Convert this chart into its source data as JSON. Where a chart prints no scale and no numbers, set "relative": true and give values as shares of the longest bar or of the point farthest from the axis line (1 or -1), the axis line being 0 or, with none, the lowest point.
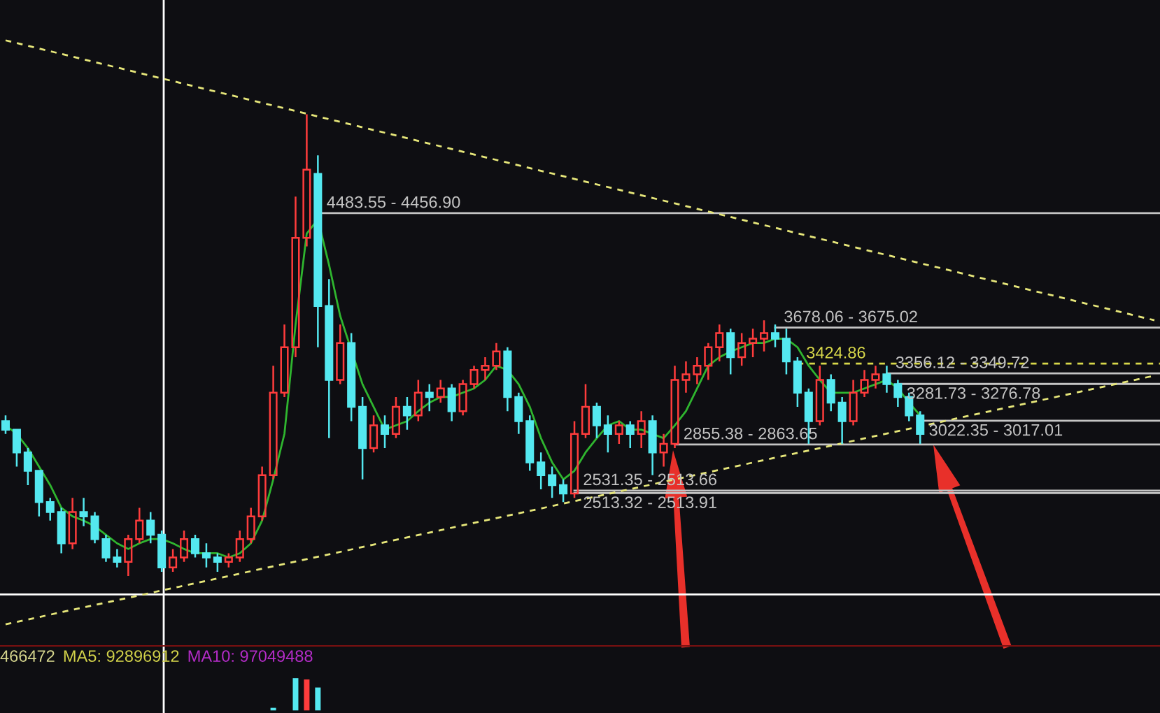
{
  "chart_data": [
    {
      "type": "candlestick",
      "tick_labels": false,
      "ylim": [
        1438,
        5984
      ],
      "categories": [
        null,
        null,
        null,
        null,
        null,
        null,
        null,
        null,
        null,
        null,
        null,
        null,
        null,
        null,
        null,
        null,
        null,
        null,
        null,
        null,
        null,
        null,
        null,
        null,
        null,
        null,
        null,
        null,
        null,
        null,
        null,
        null,
        null,
        null,
        null,
        null,
        null,
        null,
        null,
        null,
        null,
        null,
        null,
        null,
        null,
        null,
        null,
        null,
        null,
        null,
        null,
        null,
        null,
        null,
        null,
        null,
        null,
        null,
        null,
        null,
        null,
        null,
        null,
        null,
        null,
        null,
        null,
        null,
        null,
        null,
        null,
        null,
        null,
        null,
        null,
        null,
        null,
        null,
        null,
        null,
        null,
        null,
        null,
        null,
        null,
        null,
        null,
        null,
        null,
        null,
        null,
        null,
        null,
        null,
        null,
        null,
        null,
        null,
        null,
        null,
        null,
        null,
        null,
        null
      ],
      "ohlc": [
        [
          3020,
          3060,
          2930,
          2960
        ],
        [
          2960,
          2960,
          2700,
          2800
        ],
        [
          2800,
          2830,
          2570,
          2670
        ],
        [
          2670,
          2670,
          2350,
          2450
        ],
        [
          2450,
          2480,
          2320,
          2380
        ],
        [
          2380,
          2410,
          2090,
          2160
        ],
        [
          2160,
          2480,
          2120,
          2380
        ],
        [
          2380,
          2480,
          2280,
          2350
        ],
        [
          2350,
          2380,
          2160,
          2190
        ],
        [
          2190,
          2220,
          2030,
          2060
        ],
        [
          2060,
          2120,
          1990,
          2030
        ],
        [
          2030,
          2220,
          1930,
          2190
        ],
        [
          2190,
          2410,
          2160,
          2320
        ],
        [
          2320,
          2380,
          2160,
          2220
        ],
        [
          2220,
          2250,
          1960,
          1990
        ],
        [
          1990,
          2120,
          1960,
          2060
        ],
        [
          2060,
          2250,
          2030,
          2190
        ],
        [
          2190,
          2220,
          2060,
          2090
        ],
        [
          2090,
          2160,
          1990,
          2060
        ],
        [
          2060,
          2090,
          1960,
          2030
        ],
        [
          2030,
          2090,
          1990,
          2060
        ],
        [
          2060,
          2250,
          2030,
          2190
        ],
        [
          2190,
          2410,
          2160,
          2350
        ],
        [
          2350,
          2700,
          2320,
          2640
        ],
        [
          2640,
          3410,
          2610,
          3220
        ],
        [
          3220,
          3700,
          3190,
          3540
        ],
        [
          3540,
          4600,
          3470,
          4310
        ],
        [
          4310,
          5180,
          4250,
          4790
        ],
        [
          4760,
          4890,
          3540,
          3830
        ],
        [
          3830,
          4020,
          2900,
          3310
        ],
        [
          3310,
          3700,
          3280,
          3570
        ],
        [
          3570,
          3640,
          3020,
          3120
        ],
        [
          3120,
          3190,
          2610,
          2830
        ],
        [
          2830,
          3060,
          2800,
          2990
        ],
        [
          2990,
          3060,
          2830,
          2930
        ],
        [
          2930,
          3190,
          2900,
          3120
        ],
        [
          3120,
          3190,
          2960,
          3060
        ],
        [
          3060,
          3310,
          3020,
          3220
        ],
        [
          3220,
          3280,
          3090,
          3190
        ],
        [
          3190,
          3310,
          3150,
          3250
        ],
        [
          3250,
          3280,
          3020,
          3090
        ],
        [
          3090,
          3310,
          3060,
          3280
        ],
        [
          3280,
          3410,
          3250,
          3380
        ],
        [
          3380,
          3470,
          3310,
          3410
        ],
        [
          3410,
          3570,
          3380,
          3510
        ],
        [
          3510,
          3540,
          3090,
          3190
        ],
        [
          3190,
          3220,
          2930,
          3020
        ],
        [
          3020,
          3060,
          2670,
          2730
        ],
        [
          2730,
          2800,
          2540,
          2640
        ],
        [
          2640,
          2700,
          2480,
          2570
        ],
        [
          2570,
          2610,
          2450,
          2510
        ],
        [
          2510,
          3020,
          2480,
          2930
        ],
        [
          2930,
          3280,
          2900,
          3120
        ],
        [
          3120,
          3150,
          2900,
          2990
        ],
        [
          2990,
          3060,
          2800,
          2930
        ],
        [
          2930,
          3020,
          2860,
          2990
        ],
        [
          2990,
          3020,
          2830,
          2930
        ],
        [
          2930,
          3090,
          2830,
          3020
        ],
        [
          3020,
          3060,
          2640,
          2800
        ],
        [
          2800,
          2930,
          2700,
          2860
        ],
        [
          2860,
          3410,
          2830,
          3310
        ],
        [
          3310,
          3440,
          3220,
          3350
        ],
        [
          3350,
          3470,
          3280,
          3410
        ],
        [
          3410,
          3570,
          3310,
          3540
        ],
        [
          3540,
          3700,
          3440,
          3640
        ],
        [
          3640,
          3670,
          3350,
          3470
        ],
        [
          3470,
          3640,
          3410,
          3570
        ],
        [
          3570,
          3670,
          3470,
          3600
        ],
        [
          3600,
          3730,
          3510,
          3640
        ],
        [
          3640,
          3700,
          3540,
          3600
        ],
        [
          3600,
          3670,
          3350,
          3440
        ],
        [
          3440,
          3470,
          3120,
          3220
        ],
        [
          3220,
          3250,
          2860,
          3020
        ],
        [
          3020,
          3410,
          2990,
          3310
        ],
        [
          3310,
          3350,
          3090,
          3150
        ],
        [
          3150,
          3190,
          2860,
          3020
        ],
        [
          3020,
          3310,
          2990,
          3220
        ],
        [
          3220,
          3380,
          3190,
          3310
        ],
        [
          3310,
          3410,
          3250,
          3350
        ],
        [
          3350,
          3410,
          3220,
          3280
        ],
        [
          3280,
          3310,
          3120,
          3190
        ],
        [
          3190,
          3220,
          3020,
          3060
        ],
        [
          3060,
          3090,
          2860,
          2930
        ],
        null,
        null,
        null,
        null,
        null,
        null,
        null,
        null,
        null,
        null,
        null,
        null,
        null,
        null,
        null,
        null,
        null,
        null,
        null,
        null,
        null
      ],
      "series": [
        {
          "type": "line",
          "color": "#2fb52f",
          "line_style": "solid",
          "values": [
            2990,
            2930,
            2830,
            2700,
            2570,
            2410,
            2350,
            2320,
            2280,
            2220,
            2160,
            2120,
            2160,
            2190,
            2190,
            2160,
            2120,
            2090,
            2090,
            2090,
            2060,
            2090,
            2160,
            2320,
            2610,
            2930,
            3700,
            4340,
            4440,
            4120,
            3760,
            null,
            3280,
            3120,
            2960,
            2990,
            3020,
            3090,
            3150,
            3190,
            3190,
            3220,
            3250,
            3310,
            3410,
            3380,
            3280,
            3120,
            2900,
            2730,
            2610,
            2670,
            2800,
            2900,
            2990,
            3020,
            2960,
            2960,
            2930,
            2900,
            2990,
            3090,
            3250,
            3410,
            3470,
            3510,
            3540,
            3570,
            3570,
            3600,
            3600,
            3540,
            3410,
            3310,
            3220,
            3220,
            3220,
            3250,
            3280,
            3310,
            3250,
            3150,
            3060,
            null,
            null,
            null,
            null,
            null,
            null,
            null,
            null,
            null,
            null,
            null,
            null,
            null,
            null,
            null,
            null,
            null,
            null,
            null,
            null,
            null
          ]
        },
        {
          "type": "line",
          "color": "#e6e67a",
          "line_style": "dashed",
          "values": [
            5700,
            null,
            null,
            null,
            null,
            null,
            null,
            null,
            null,
            null,
            null,
            null,
            null,
            null,
            null,
            null,
            null,
            null,
            null,
            null,
            null,
            null,
            null,
            null,
            null,
            null,
            null,
            null,
            null,
            null,
            null,
            null,
            null,
            null,
            null,
            null,
            null,
            null,
            null,
            null,
            null,
            null,
            null,
            null,
            null,
            null,
            null,
            null,
            null,
            null,
            null,
            null,
            null,
            null,
            null,
            null,
            null,
            null,
            null,
            null,
            null,
            null,
            null,
            null,
            null,
            null,
            null,
            null,
            null,
            null,
            null,
            null,
            null,
            null,
            null,
            null,
            null,
            null,
            null,
            null,
            null,
            null,
            null,
            null,
            null,
            null,
            null,
            null,
            null,
            null,
            null,
            null,
            null,
            null,
            null,
            null,
            null,
            null,
            null,
            null,
            null,
            null,
            null,
            3730
          ]
        },
        {
          "type": "line",
          "color": "#e6e67a",
          "line_style": "dashed",
          "values": [
            1590,
            null,
            null,
            null,
            null,
            null,
            null,
            null,
            null,
            null,
            null,
            null,
            null,
            null,
            null,
            null,
            null,
            null,
            null,
            null,
            null,
            null,
            null,
            null,
            null,
            null,
            null,
            null,
            null,
            null,
            null,
            null,
            null,
            null,
            null,
            null,
            null,
            null,
            null,
            null,
            null,
            null,
            null,
            null,
            null,
            null,
            null,
            null,
            null,
            null,
            null,
            null,
            null,
            null,
            null,
            null,
            null,
            null,
            null,
            null,
            null,
            null,
            null,
            null,
            null,
            null,
            null,
            null,
            null,
            null,
            null,
            null,
            null,
            null,
            null,
            null,
            null,
            null,
            null,
            null,
            null,
            null,
            null,
            null,
            null,
            null,
            null,
            null,
            null,
            null,
            null,
            null,
            null,
            null,
            null,
            null,
            null,
            null,
            null,
            null,
            null,
            null,
            null,
            3340
          ]
        }
      ],
      "ref_lines": [
        {
          "axis": "y",
          "value": 4483.55,
          "label": "4483.55 - 4456.90",
          "color": "#c4c4c4"
        },
        {
          "axis": "y",
          "value": 3678.06,
          "label": "3678.06 - 3675.02",
          "color": "#c4c4c4"
        },
        {
          "axis": "y",
          "value": 3424.86,
          "label": "3424.86",
          "color": "#d8d84a",
          "line_style": "dashed"
        },
        {
          "axis": "y",
          "value": 3356.12,
          "label": "3356.12 - 3349.72",
          "color": "#c4c4c4"
        },
        {
          "axis": "y",
          "value": 3281.73,
          "label": "3281.73 - 3276.78",
          "color": "#c4c4c4"
        },
        {
          "axis": "y",
          "value": 3022.35,
          "label": "3022.35 - 3017.01",
          "color": "#c4c4c4"
        },
        {
          "axis": "y",
          "value": 2855.38,
          "label": "2855.38 - 2863.65",
          "color": "#c4c4c4"
        },
        {
          "axis": "y",
          "value": 2531.35,
          "label": "2531.35 - 2513.66",
          "color": "#c4c4c4"
        },
        {
          "axis": "y",
          "value": 2513.32,
          "label": "2513.32 - 2513.91",
          "color": "#c4c4c4"
        },
        {
          "axis": "y",
          "value": 1800,
          "color": "#ffffff"
        }
      ]
    },
    {
      "type": "bar",
      "relative": true,
      "tick_labels": false,
      "legend": "top left",
      "categories": [
        null,
        null,
        null,
        null,
        null,
        null,
        null,
        null,
        null,
        null,
        null,
        null,
        null,
        null,
        null,
        null,
        null,
        null,
        null,
        null,
        null,
        null,
        null,
        null,
        null,
        null,
        null,
        null,
        null,
        null,
        null,
        null,
        null,
        null,
        null,
        null,
        null,
        null,
        null,
        null,
        null,
        null,
        null,
        null,
        null,
        null,
        null,
        null,
        null,
        null,
        null,
        null,
        null,
        null,
        null,
        null,
        null,
        null,
        null,
        null,
        null,
        null,
        null,
        null,
        null,
        null,
        null,
        null,
        null,
        null,
        null,
        null,
        null,
        null,
        null,
        null,
        null,
        null,
        null,
        null,
        null,
        null,
        null,
        null,
        null,
        null,
        null,
        null,
        null,
        null,
        null,
        null,
        null,
        null,
        null,
        null,
        null,
        null,
        null,
        null,
        null,
        null,
        null,
        null
      ],
      "series": [
        {
          "type": "bar",
          "name": "466472",
          "color": "#d6d68e",
          "values": [
            null,
            null,
            null,
            null,
            null,
            null,
            null,
            null,
            null,
            null,
            null,
            null,
            null,
            null,
            null,
            null,
            null,
            null,
            null,
            null,
            null,
            null,
            null,
            null,
            0.08,
            null,
            1,
            0.96,
            0.71,
            null,
            null,
            null,
            null,
            null,
            null,
            null,
            null,
            null,
            null,
            null,
            null,
            null,
            null,
            null,
            null,
            null,
            null,
            null,
            null,
            null,
            null,
            null,
            null,
            null,
            null,
            null,
            null,
            null,
            null,
            null,
            null,
            null,
            null,
            null,
            null,
            null,
            null,
            null,
            null,
            null,
            null,
            null,
            null,
            null,
            null,
            null,
            null,
            null,
            null,
            null,
            null,
            null,
            null,
            null,
            null,
            null,
            null,
            null,
            null,
            null,
            null,
            null,
            null,
            null,
            null,
            null,
            null,
            null,
            null,
            null,
            null,
            null,
            null,
            null
          ],
          "colors": [
            null,
            null,
            null,
            null,
            null,
            null,
            null,
            null,
            null,
            null,
            null,
            null,
            null,
            null,
            null,
            null,
            null,
            null,
            null,
            null,
            null,
            null,
            null,
            null,
            "#54e8f0",
            null,
            "#54e8f0",
            "#ff3c3c",
            "#54e8f0",
            null,
            null,
            null,
            null,
            null,
            null,
            null,
            null,
            null,
            null,
            null,
            null,
            null,
            null,
            null,
            null,
            null,
            null,
            null,
            null,
            null,
            null,
            null,
            null,
            null,
            null,
            null,
            null,
            null,
            null,
            null,
            null,
            null,
            null,
            null,
            null,
            null,
            null,
            null,
            null,
            null,
            null,
            null,
            null,
            null,
            null,
            null,
            null,
            null,
            null,
            null,
            null,
            null,
            null,
            null,
            null,
            null,
            null,
            null,
            null,
            null,
            null,
            null,
            null,
            null,
            null,
            null,
            null,
            null,
            null,
            null,
            null,
            null,
            null,
            null
          ]
        },
        {
          "type": "line",
          "name": "MA5: 92896912",
          "color": "#d2d24a",
          "values": [
            null,
            null,
            null,
            null,
            null,
            null,
            null,
            null,
            null,
            null,
            null,
            null,
            null,
            null,
            null,
            null,
            null,
            null,
            null,
            null,
            null,
            null,
            null,
            null,
            null,
            null,
            null,
            null,
            null,
            null,
            null,
            null,
            null,
            null,
            null,
            null,
            null,
            null,
            null,
            null,
            null,
            null,
            null,
            null,
            null,
            null,
            null,
            null,
            null,
            null,
            null,
            null,
            null,
            null,
            null,
            null,
            null,
            null,
            null,
            null,
            null,
            null,
            null,
            null,
            null,
            null,
            null,
            null,
            null,
            null,
            null,
            null,
            null,
            null,
            null,
            null,
            null,
            null,
            null,
            null,
            null,
            null,
            null,
            null,
            null,
            null,
            null,
            null,
            null,
            null,
            null,
            null,
            null,
            null,
            null,
            null,
            null,
            null,
            null,
            null,
            null,
            null,
            null,
            null
          ]
        },
        {
          "type": "line",
          "name": "MA10: 97049488",
          "color": "#b42cc8",
          "values": [
            null,
            null,
            null,
            null,
            null,
            null,
            null,
            null,
            null,
            null,
            null,
            null,
            null,
            null,
            null,
            null,
            null,
            null,
            null,
            null,
            null,
            null,
            null,
            null,
            null,
            null,
            null,
            null,
            null,
            null,
            null,
            null,
            null,
            null,
            null,
            null,
            null,
            null,
            null,
            null,
            null,
            null,
            null,
            null,
            null,
            null,
            null,
            null,
            null,
            null,
            null,
            null,
            null,
            null,
            null,
            null,
            null,
            null,
            null,
            null,
            null,
            null,
            null,
            null,
            null,
            null,
            null,
            null,
            null,
            null,
            null,
            null,
            null,
            null,
            null,
            null,
            null,
            null,
            null,
            null,
            null,
            null,
            null,
            null,
            null,
            null,
            null,
            null,
            null,
            null,
            null,
            null,
            null,
            null,
            null,
            null,
            null,
            null,
            null,
            null,
            null,
            null,
            null,
            null
          ]
        }
      ]
    }
  ]
}
